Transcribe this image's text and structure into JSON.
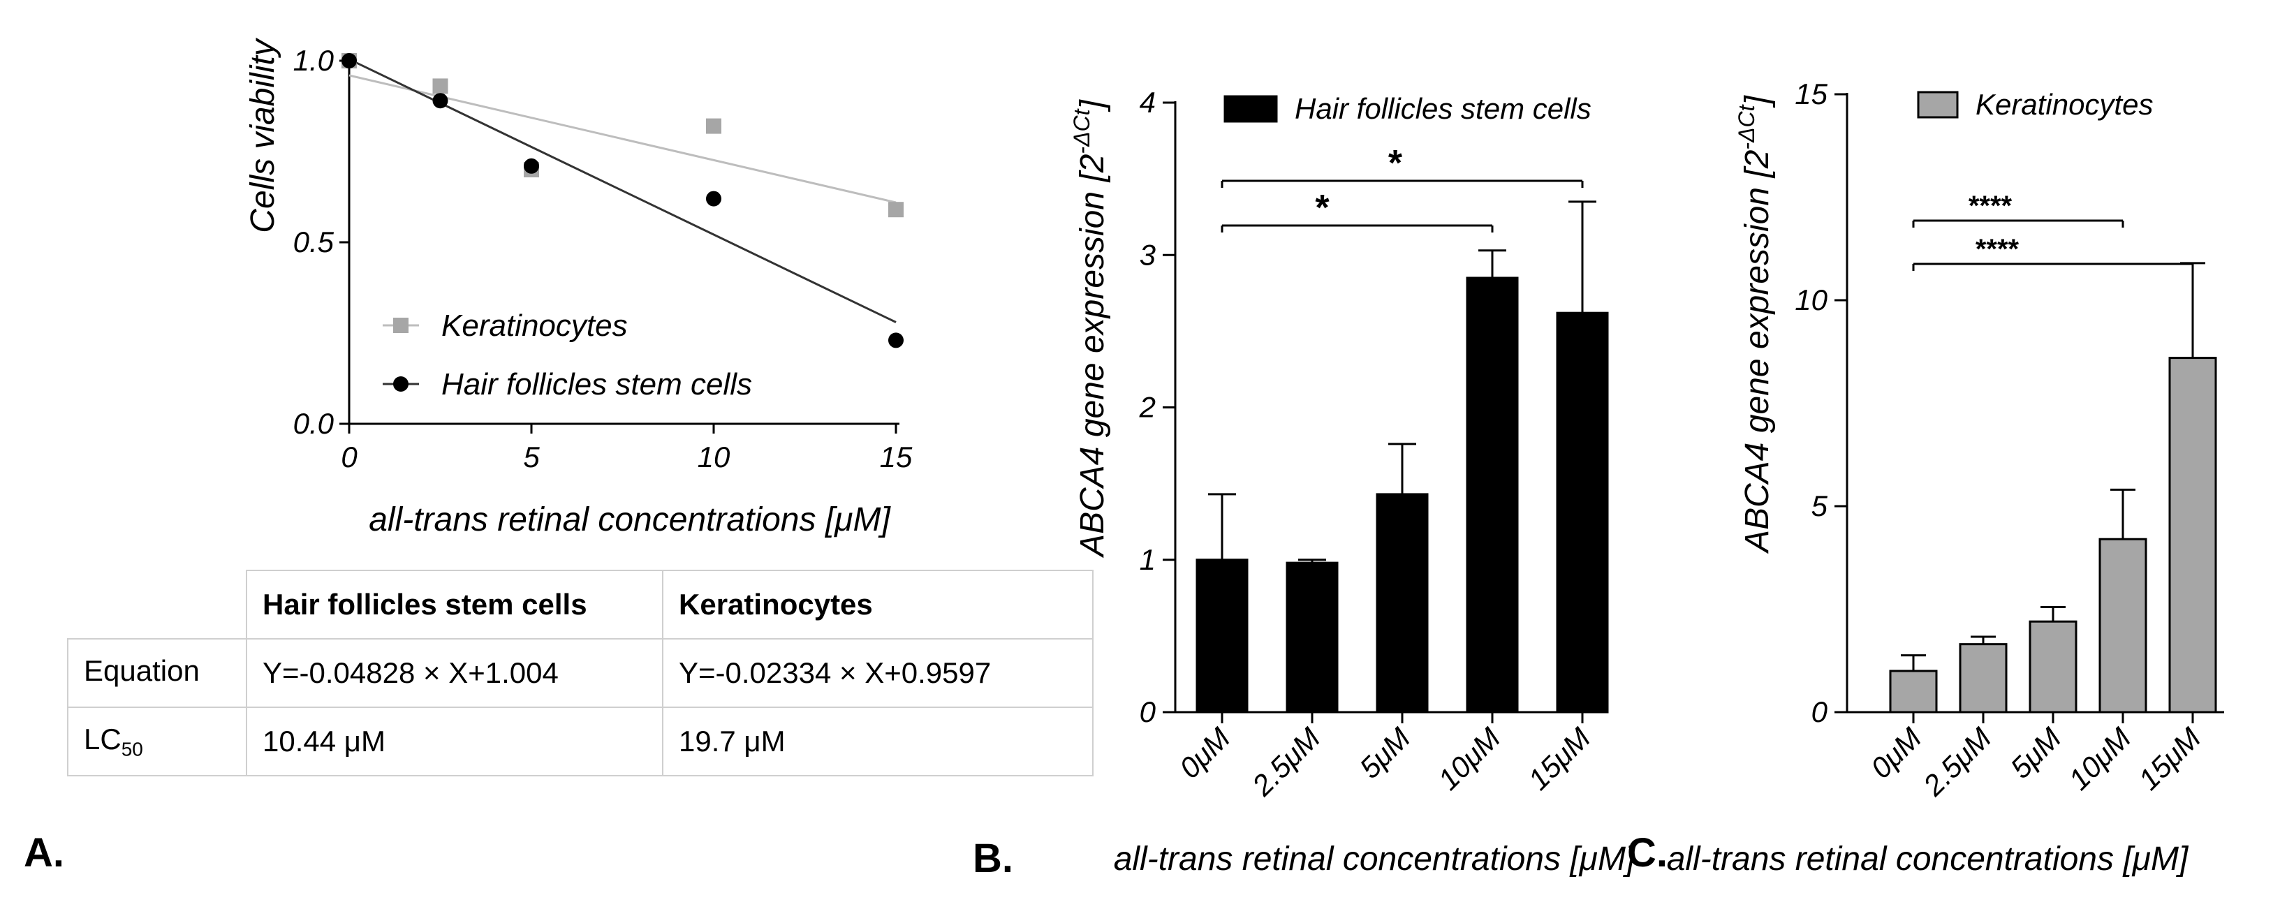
{
  "chart_data": [
    {
      "panel": "A.",
      "type": "scatter",
      "xlabel": "all-trans retinal concentrations [μM]",
      "ylabel": "Cells viability",
      "xlim": [
        0,
        15
      ],
      "ylim": [
        0,
        1
      ],
      "x_ticks": [
        "0",
        "5",
        "10",
        "15"
      ],
      "y_ticks": [
        "0.0",
        "0.5",
        "1.0"
      ],
      "legend_placement": "lower-left",
      "series": [
        {
          "name": "Keratinocytes",
          "marker": "square",
          "color": "#a6a6a6",
          "x": [
            0,
            2.5,
            5,
            10,
            15
          ],
          "y": [
            1.0,
            0.93,
            0.7,
            0.82,
            0.59
          ],
          "fit": {
            "slope": -0.02334,
            "intercept": 0.9597
          }
        },
        {
          "name": "Hair follicles stem cells",
          "marker": "circle",
          "color": "#000000",
          "x": [
            0,
            2.5,
            5,
            10,
            15
          ],
          "y": [
            1.0,
            0.89,
            0.71,
            0.62,
            0.23
          ],
          "fit": {
            "slope": -0.04828,
            "intercept": 1.004
          }
        }
      ]
    },
    {
      "panel": "B.",
      "type": "bar",
      "categories": [
        "0μM",
        "2.5μM",
        "5μM",
        "10μM",
        "15μM"
      ],
      "series": [
        {
          "name": "Hair follicles stem cells",
          "color": "#000000",
          "values": [
            1.0,
            0.98,
            1.43,
            2.85,
            2.62
          ],
          "errors": [
            0.43,
            0.02,
            0.33,
            0.18,
            0.73
          ]
        }
      ],
      "xlabel": "all-trans retinal concentrations [μM]",
      "ylabel": "ABCA4 gene expression [2",
      "ylabel_sup": "-ΔCt",
      "ylabel_end": "]",
      "ylim": [
        0,
        4
      ],
      "y_ticks": [
        "0",
        "1",
        "2",
        "3",
        "4"
      ],
      "legend_placement": "top",
      "significance": [
        {
          "from": 0,
          "to": 3,
          "label": "*"
        },
        {
          "from": 0,
          "to": 4,
          "label": "*"
        }
      ]
    },
    {
      "panel": "C.",
      "type": "bar",
      "categories": [
        "0μM",
        "2.5μM",
        "5μM",
        "10μM",
        "15μM"
      ],
      "series": [
        {
          "name": "Keratinocytes",
          "color": "#a6a6a6",
          "values": [
            1.0,
            1.65,
            2.2,
            4.2,
            8.6
          ],
          "errors": [
            0.38,
            0.18,
            0.35,
            1.2,
            2.3
          ]
        }
      ],
      "xlabel": "all-trans retinal concentrations [μM]",
      "ylabel": "ABCA4 gene expression [2",
      "ylabel_sup": "-ΔCt",
      "ylabel_end": "]",
      "ylim": [
        0,
        15
      ],
      "y_ticks": [
        "0",
        "5",
        "10",
        "15"
      ],
      "legend_placement": "top-left",
      "significance": [
        {
          "from": 0,
          "to": 3,
          "label": "****"
        },
        {
          "from": 0,
          "to": 4,
          "label": "****"
        }
      ]
    }
  ],
  "table": {
    "header": [
      "",
      "Hair follicles stem cells",
      "Keratinocytes"
    ],
    "rows": [
      {
        "label": "Equation",
        "label_sub": "",
        "c1": "Y=-0.04828 × X+1.004",
        "c2": "Y=-0.02334 × X+0.9597"
      },
      {
        "label": "LC",
        "label_sub": "50",
        "c1": "10.44 μM",
        "c2": "19.7 μM"
      }
    ]
  }
}
